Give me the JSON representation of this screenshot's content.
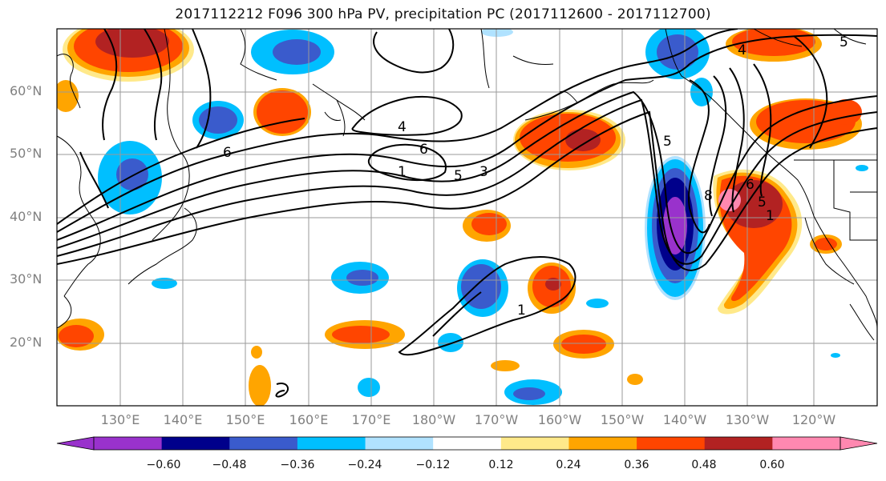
{
  "title": "2017112212 F096 300 hPa PV, precipitation PC (2017112600 - 2017112700)",
  "lat_labels": [
    "60°N",
    "50°N",
    "40°N",
    "30°N",
    "20°N"
  ],
  "lon_labels": [
    "130°E",
    "140°E",
    "150°E",
    "160°E",
    "170°E",
    "180°W",
    "170°W",
    "160°W",
    "150°W",
    "140°W",
    "130°W",
    "120°W"
  ],
  "colorbar": {
    "ticks": [
      "−0.60",
      "−0.48",
      "−0.36",
      "−0.24",
      "−0.12",
      "0.12",
      "0.24",
      "0.36",
      "0.48",
      "0.60"
    ],
    "colors": [
      "#9932CC",
      "#00008B",
      "#3A5BCC",
      "#00BFFF",
      "#B0E2FF",
      "#FFFFFF",
      "#FFE98A",
      "#FFA500",
      "#FF4500",
      "#B22222",
      "#FF88B0"
    ]
  },
  "contour_labels": [
    "4",
    "6",
    "1",
    "5",
    "3",
    "6",
    "4",
    "5",
    "5",
    "8",
    "6",
    "5",
    "1",
    "1"
  ],
  "palette": {
    "purple": "#9932CC",
    "navy": "#00008B",
    "blue": "#3A5BCC",
    "sky": "#00BFFF",
    "light": "#B0E2FF",
    "yellow": "#FFE98A",
    "orange": "#FFA500",
    "red": "#FF4500",
    "dark_red": "#B22222",
    "pink": "#FF88B0"
  }
}
